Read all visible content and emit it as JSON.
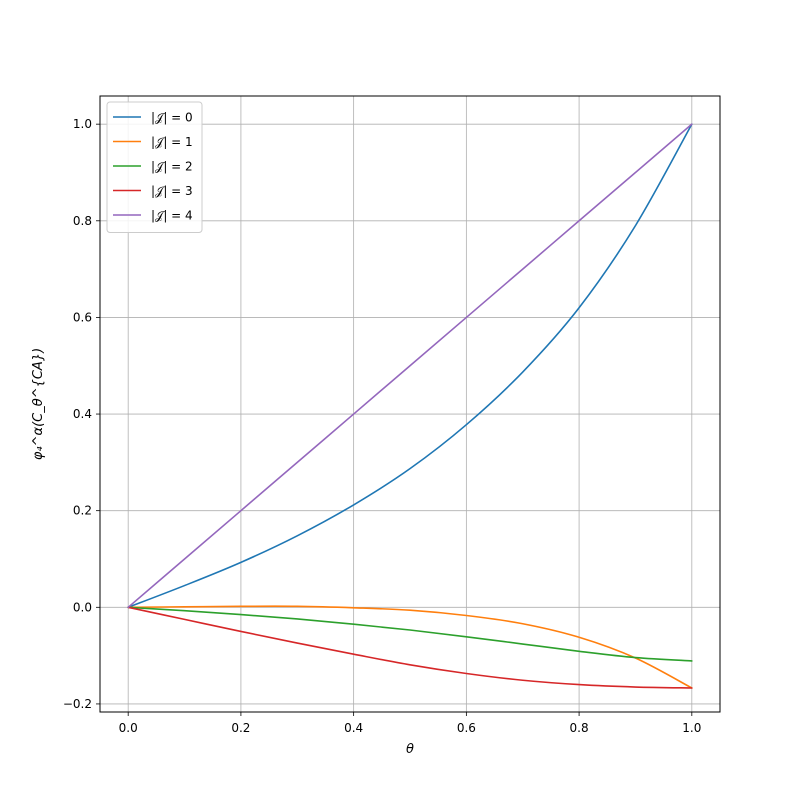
{
  "chart_data": {
    "type": "line",
    "title": "",
    "xlabel": "θ",
    "ylabel": "φ₄^α(C_θ^{CA})",
    "xlim": [
      -0.05,
      1.05
    ],
    "ylim": [
      -0.2167,
      1.0583
    ],
    "x_ticks": [
      0.0,
      0.2,
      0.4,
      0.6,
      0.8,
      1.0
    ],
    "x_tick_labels": [
      "0.0",
      "0.2",
      "0.4",
      "0.6",
      "0.8",
      "1.0"
    ],
    "y_ticks": [
      -0.2,
      0.0,
      0.2,
      0.4,
      0.6,
      0.8,
      1.0
    ],
    "y_tick_labels": [
      "−0.2",
      "0.0",
      "0.2",
      "0.4",
      "0.6",
      "0.8",
      "1.0"
    ],
    "grid": true,
    "legend_position": "upper-left",
    "x": [
      0.0,
      0.1,
      0.2,
      0.3,
      0.4,
      0.5,
      0.6,
      0.7,
      0.8,
      0.9,
      1.0
    ],
    "series": [
      {
        "name": "|𝒥| = 0",
        "color": "#1f77b4",
        "values": [
          0.0,
          0.045,
          0.093,
          0.148,
          0.212,
          0.287,
          0.378,
          0.487,
          0.62,
          0.79,
          1.0
        ]
      },
      {
        "name": "|𝒥| = 1",
        "color": "#ff7f0e",
        "values": [
          0.0,
          0.001,
          0.002,
          0.002,
          -0.001,
          -0.006,
          -0.017,
          -0.034,
          -0.062,
          -0.105,
          -0.167
        ]
      },
      {
        "name": "|𝒥| = 2",
        "color": "#2ca02c",
        "values": [
          0.0,
          -0.007,
          -0.015,
          -0.024,
          -0.035,
          -0.047,
          -0.061,
          -0.076,
          -0.091,
          -0.104,
          -0.111
        ]
      },
      {
        "name": "|𝒥| = 3",
        "color": "#d62728",
        "values": [
          0.0,
          -0.025,
          -0.05,
          -0.074,
          -0.097,
          -0.119,
          -0.137,
          -0.151,
          -0.16,
          -0.165,
          -0.167
        ]
      },
      {
        "name": "|𝒥| = 4",
        "color": "#9467bd",
        "values": [
          0.0,
          0.1,
          0.2,
          0.3,
          0.4,
          0.5,
          0.6,
          0.7,
          0.8,
          0.9,
          1.0
        ]
      }
    ]
  }
}
